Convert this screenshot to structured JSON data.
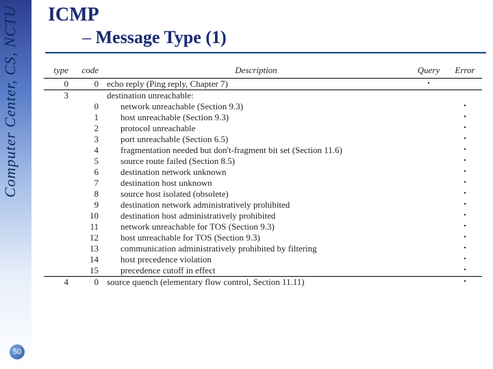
{
  "sidebar": {
    "text": "Computer Center, CS, NCTU"
  },
  "page_number": "50",
  "title": {
    "main": "ICMP",
    "sub_dash": "– ",
    "sub": "Message Type (1)"
  },
  "table": {
    "headers": {
      "type": "type",
      "code": "code",
      "desc": "Description",
      "query": "Query",
      "error": "Error"
    },
    "rows": [
      {
        "type": "0",
        "code": "0",
        "desc": "echo reply (Ping reply, Chapter 7)",
        "query": true,
        "error": false,
        "sep": true
      },
      {
        "type": "3",
        "code": "",
        "desc": "destination unreachable:",
        "query": false,
        "error": false,
        "sep": true
      },
      {
        "type": "",
        "code": "0",
        "desc": "network unreachable (Section 9.3)",
        "query": false,
        "error": true,
        "indent": true
      },
      {
        "type": "",
        "code": "1",
        "desc": "host unreachable (Section 9.3)",
        "query": false,
        "error": true,
        "indent": true
      },
      {
        "type": "",
        "code": "2",
        "desc": "protocol unreachable",
        "query": false,
        "error": true,
        "indent": true
      },
      {
        "type": "",
        "code": "3",
        "desc": "port unreachable (Section 6.5)",
        "query": false,
        "error": true,
        "indent": true
      },
      {
        "type": "",
        "code": "4",
        "desc": "fragmentation needed but don't-fragment bit set (Section 11.6)",
        "query": false,
        "error": true,
        "indent": true
      },
      {
        "type": "",
        "code": "5",
        "desc": "source route failed (Section 8.5)",
        "query": false,
        "error": true,
        "indent": true
      },
      {
        "type": "",
        "code": "6",
        "desc": "destination network unknown",
        "query": false,
        "error": true,
        "indent": true
      },
      {
        "type": "",
        "code": "7",
        "desc": "destination host unknown",
        "query": false,
        "error": true,
        "indent": true
      },
      {
        "type": "",
        "code": "8",
        "desc": "source host isolated (obsolete)",
        "query": false,
        "error": true,
        "indent": true
      },
      {
        "type": "",
        "code": "9",
        "desc": "destination network administratively prohibited",
        "query": false,
        "error": true,
        "indent": true
      },
      {
        "type": "",
        "code": "10",
        "desc": "destination host administratively prohibited",
        "query": false,
        "error": true,
        "indent": true
      },
      {
        "type": "",
        "code": "11",
        "desc": "network unreachable for TOS (Section 9.3)",
        "query": false,
        "error": true,
        "indent": true
      },
      {
        "type": "",
        "code": "12",
        "desc": "host unreachable for TOS (Section 9.3)",
        "query": false,
        "error": true,
        "indent": true
      },
      {
        "type": "",
        "code": "13",
        "desc": "communication administratively prohibited by filtering",
        "query": false,
        "error": true,
        "indent": true
      },
      {
        "type": "",
        "code": "14",
        "desc": "host precedence violation",
        "query": false,
        "error": true,
        "indent": true
      },
      {
        "type": "",
        "code": "15",
        "desc": "precedence cutoff in effect",
        "query": false,
        "error": true,
        "indent": true
      },
      {
        "type": "4",
        "code": "0",
        "desc": "source quench (elementary flow control, Section 11.11)",
        "query": false,
        "error": true,
        "sep": true
      }
    ]
  }
}
